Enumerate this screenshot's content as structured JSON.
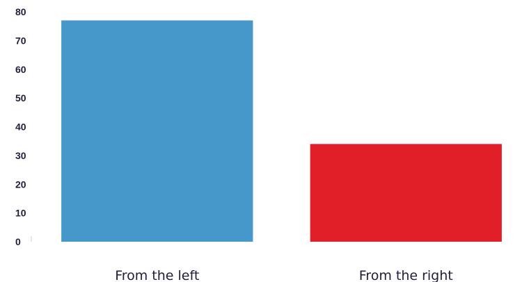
{
  "chart_data": {
    "type": "bar",
    "title": "",
    "xlabel": "",
    "ylabel": "",
    "categories": [
      "From the left",
      "From the right"
    ],
    "values": [
      77,
      34
    ],
    "ylim": [
      0,
      80
    ],
    "yticks": [
      "0",
      "10",
      "20",
      "30",
      "40",
      "50",
      "60",
      "70",
      "80"
    ],
    "colors": [
      "#4598c9",
      "#e11f28"
    ],
    "grid": false,
    "legend": "none"
  }
}
